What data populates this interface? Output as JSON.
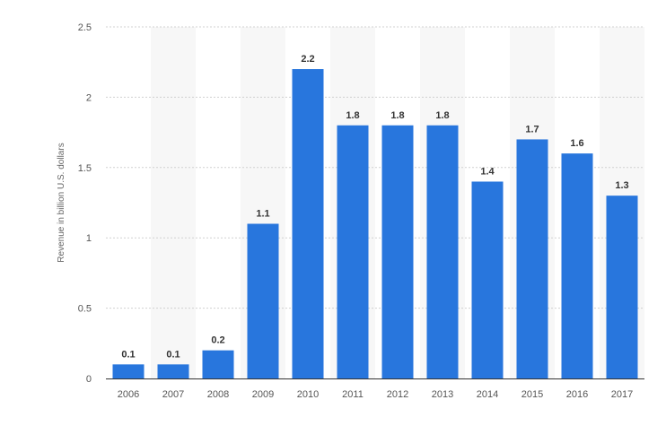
{
  "chart_data": {
    "type": "bar",
    "title": "",
    "xlabel": "",
    "ylabel": "Revenue in billion U.S. dollars",
    "categories": [
      "2006",
      "2007",
      "2008",
      "2009",
      "2010",
      "2011",
      "2012",
      "2013",
      "2014",
      "2015",
      "2016",
      "2017"
    ],
    "values": [
      0.1,
      0.1,
      0.2,
      1.1,
      2.2,
      1.8,
      1.8,
      1.8,
      1.4,
      1.7,
      1.6,
      1.3
    ],
    "data_labels": [
      "0.1",
      "0.1",
      "0.2",
      "1.1",
      "2.2",
      "1.8",
      "1.8",
      "1.8",
      "1.4",
      "1.7",
      "1.6",
      "1.3"
    ],
    "ylim": [
      0,
      2.5
    ],
    "yticks": [
      0,
      0.5,
      1,
      1.5,
      2,
      2.5
    ],
    "ytick_labels": [
      "0",
      "0.5",
      "1",
      "1.5",
      "2",
      "2.5"
    ],
    "grid": true,
    "legend": "none",
    "colors": {
      "bar": "#2876dd",
      "band": "#f7f7f7",
      "grid": "#d0d0d0",
      "axis": "#333333"
    }
  }
}
